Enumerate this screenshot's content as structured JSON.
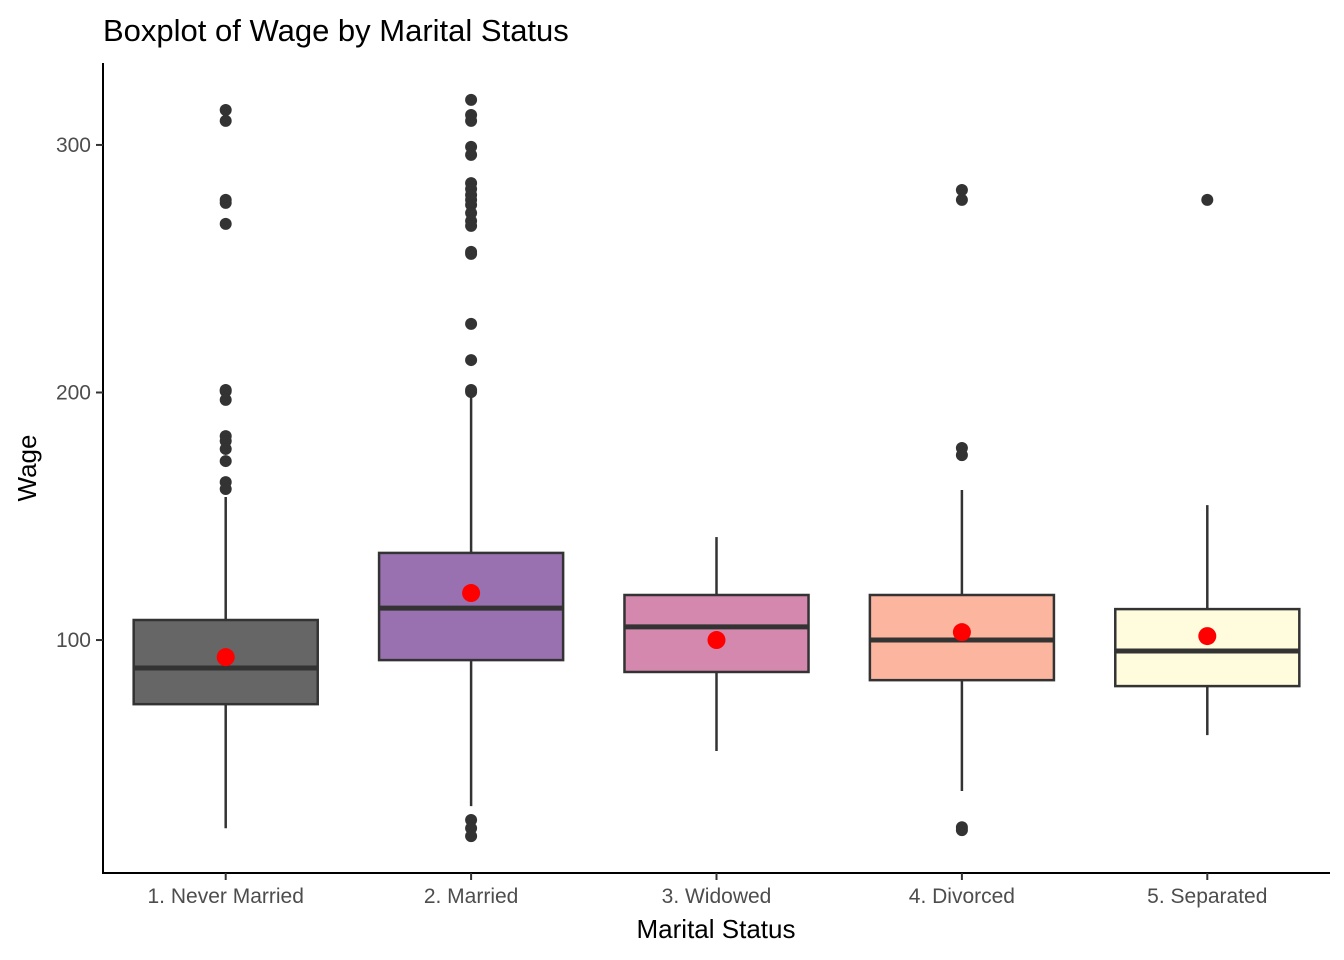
{
  "chart_data": {
    "type": "boxplot",
    "title": "Boxplot of Wage by Marital Status",
    "xlabel": "Marital Status",
    "ylabel": "Wage",
    "ylim": [
      5.9,
      333.1
    ],
    "yticks": [
      100,
      200,
      300
    ],
    "grid": false,
    "categories": [
      "1. Never Married",
      "2. Married",
      "3. Widowed",
      "4. Divorced",
      "5. Separated"
    ],
    "colors": [
      "#666666",
      "#9970b0",
      "#d488ad",
      "#fcb59f",
      "#fefcdc"
    ],
    "mean_color": "#ff0000",
    "boxes": [
      {
        "whisker_low": 24.0,
        "q1": 74.1,
        "median": 88.7,
        "q3": 108.1,
        "whisker_high": 157.8,
        "mean": 93.1,
        "outliers": [
          314.1,
          309.7,
          277.8,
          276.6,
          268.1,
          201.0,
          200.5,
          197.0,
          182.4,
          180.4,
          177.2,
          172.3,
          163.8,
          161.0
        ]
      },
      {
        "whisker_low": 32.9,
        "q1": 91.9,
        "median": 112.9,
        "q3": 135.2,
        "whisker_high": 200.2,
        "mean": 119.0,
        "outliers": [
          318.2,
          312.1,
          309.7,
          299.2,
          296.0,
          284.6,
          282.2,
          279.8,
          277.8,
          275.8,
          272.5,
          269.3,
          267.3,
          256.8,
          256.0,
          227.7,
          213.1,
          201.0,
          200.2,
          27.3,
          24.0,
          20.8
        ]
      },
      {
        "whisker_low": 55.2,
        "q1": 87.1,
        "median": 105.3,
        "q3": 118.2,
        "whisker_high": 141.6,
        "mean": 100.0,
        "outliers": []
      },
      {
        "whisker_low": 39.0,
        "q1": 83.8,
        "median": 100.0,
        "q3": 118.2,
        "whisker_high": 160.6,
        "mean": 103.2,
        "outliers": [
          281.8,
          277.8,
          177.6,
          174.7,
          24.4,
          23.2
        ]
      },
      {
        "whisker_low": 61.6,
        "q1": 81.4,
        "median": 95.6,
        "q3": 112.5,
        "whisker_high": 154.5,
        "mean": 101.6,
        "outliers": [
          277.8
        ]
      }
    ]
  }
}
